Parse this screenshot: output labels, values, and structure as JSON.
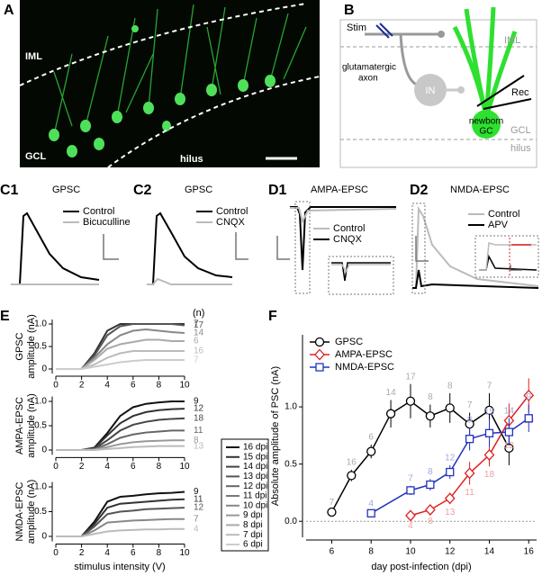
{
  "panel_labels": [
    "A",
    "B",
    "C1",
    "C2",
    "D1",
    "D2",
    "E",
    "F"
  ],
  "panel_a": {
    "labels": [
      "IML",
      "GCL",
      "hilus"
    ]
  },
  "panel_b": {
    "stim": "Stim",
    "iml": "IML",
    "axon": [
      "glutamatergic",
      "axon"
    ],
    "in": "IN",
    "rec": "Rec",
    "gc": [
      "newborn",
      "GC"
    ],
    "gcl": "GCL",
    "hilus": "hilus"
  },
  "traces": [
    {
      "title": "GPSC",
      "legend": [
        "Control",
        "Bicuculline"
      ]
    },
    {
      "title": "GPSC",
      "legend": [
        "Control",
        "CNQX"
      ]
    },
    {
      "title": "AMPA-EPSC",
      "legend": [
        "Control",
        "CNQX"
      ]
    },
    {
      "title": "NMDA-EPSC",
      "legend": [
        "Control",
        "APV"
      ]
    }
  ],
  "panel_e": {
    "n_header": "(n)",
    "legend": [
      "16 dpi",
      "15 dpi",
      "14 dpi",
      "13 dpi",
      "12 dpi",
      "11 dpi",
      "10 dpi",
      "9 dpi",
      "8 dpi",
      "7 dpi",
      "6 dpi"
    ],
    "legend_colors": [
      "#111111",
      "#333333",
      "#444444",
      "#555555",
      "#666666",
      "#777777",
      "#888888",
      "#999999",
      "#aaaaaa",
      "#bbbbbb",
      "#cccccc"
    ],
    "x_label": "stimulus intensity (V)"
  },
  "chart_data": [
    {
      "type": "line",
      "y_label": [
        "GPSC",
        "amplitude (nA)"
      ],
      "x": [
        0,
        2,
        3,
        4,
        5,
        6,
        7,
        8,
        9,
        10
      ],
      "xlim": [
        0,
        10
      ],
      "xticks": [
        0,
        2,
        4,
        6,
        8,
        10
      ],
      "ylim": [
        -0.1,
        1.1
      ],
      "yticks": [
        0,
        0.5,
        {
          "value": 1,
          "label": "1.0"
        }
      ],
      "series": [
        {
          "color": "#333333",
          "n": 7,
          "values": [
            0,
            0,
            0.35,
            0.85,
            1.0,
            1.0,
            1.0,
            1.0,
            1.0,
            1.0
          ]
        },
        {
          "color": "#555555",
          "n": 17,
          "values": [
            0,
            0,
            0.3,
            0.75,
            0.95,
            1.0,
            1.0,
            1.0,
            1.0,
            0.97
          ]
        },
        {
          "color": "#888888",
          "n": 14,
          "values": [
            0,
            0,
            0.25,
            0.55,
            0.75,
            0.85,
            0.88,
            0.85,
            0.82,
            0.8
          ]
        },
        {
          "color": "#aaaaaa",
          "n": 6,
          "values": [
            0,
            0,
            0.2,
            0.45,
            0.55,
            0.6,
            0.65,
            0.65,
            0.62,
            0.62
          ]
        },
        {
          "color": "#bbbbbb",
          "n": 16,
          "values": [
            0,
            0,
            0.1,
            0.25,
            0.35,
            0.4,
            0.4,
            0.4,
            0.4,
            0.4
          ]
        },
        {
          "color": "#cccccc",
          "n": 7,
          "values": [
            0,
            0,
            0.05,
            0.1,
            0.15,
            0.18,
            0.2,
            0.2,
            0.2,
            0.2
          ]
        }
      ]
    },
    {
      "type": "line",
      "y_label": [
        "AMPA-EPSC",
        "amplitude (nA)"
      ],
      "x": [
        0,
        2,
        3,
        4,
        5,
        6,
        7,
        8,
        9,
        10
      ],
      "xlim": [
        0,
        10
      ],
      "xticks": [
        0,
        2,
        4,
        6,
        8,
        10
      ],
      "ylim": [
        -0.1,
        1.1
      ],
      "yticks": [
        0,
        0.5,
        {
          "value": 1,
          "label": "1.0"
        }
      ],
      "series": [
        {
          "color": "#111111",
          "n": 9,
          "values": [
            0,
            0,
            0.05,
            0.35,
            0.7,
            0.88,
            0.95,
            0.98,
            1.0,
            1.0
          ]
        },
        {
          "color": "#333333",
          "n": 12,
          "values": [
            0,
            0,
            0.04,
            0.3,
            0.55,
            0.7,
            0.78,
            0.82,
            0.84,
            0.85
          ]
        },
        {
          "color": "#444444",
          "n": 18,
          "values": [
            0,
            0,
            0.03,
            0.2,
            0.4,
            0.52,
            0.58,
            0.62,
            0.64,
            0.65
          ]
        },
        {
          "color": "#666666",
          "n": 11,
          "values": [
            0,
            0,
            0.02,
            0.12,
            0.25,
            0.32,
            0.36,
            0.38,
            0.4,
            0.4
          ]
        },
        {
          "color": "#999999",
          "n": 8,
          "values": [
            0,
            0,
            0.01,
            0.06,
            0.12,
            0.16,
            0.18,
            0.19,
            0.2,
            0.2
          ]
        },
        {
          "color": "#bbbbbb",
          "n": 13,
          "values": [
            0,
            0,
            0,
            0.02,
            0.04,
            0.06,
            0.07,
            0.08,
            0.08,
            0.08
          ]
        }
      ]
    },
    {
      "type": "line",
      "y_label": [
        "NMDA-EPSC",
        "amplitude (nA)"
      ],
      "x": [
        0,
        2,
        3,
        4,
        5,
        6,
        7,
        8,
        9,
        10
      ],
      "xlim": [
        0,
        10
      ],
      "xticks": [
        0,
        2,
        4,
        6,
        8,
        10
      ],
      "ylim": [
        -0.1,
        1.1
      ],
      "yticks": [
        0,
        0.5,
        {
          "value": 1,
          "label": "1.0"
        }
      ],
      "series": [
        {
          "color": "#111111",
          "n": 9,
          "values": [
            0,
            0,
            0.3,
            0.7,
            0.8,
            0.82,
            0.85,
            0.87,
            0.88,
            0.9
          ]
        },
        {
          "color": "#333333",
          "n": 11,
          "values": [
            0,
            0,
            0.25,
            0.58,
            0.66,
            0.68,
            0.7,
            0.72,
            0.74,
            0.75
          ]
        },
        {
          "color": "#555555",
          "n": 12,
          "values": [
            0,
            0,
            0.2,
            0.45,
            0.5,
            0.52,
            0.55,
            0.56,
            0.57,
            0.58
          ]
        },
        {
          "color": "#888888",
          "n": 7,
          "values": [
            0,
            0,
            0.12,
            0.28,
            0.3,
            0.32,
            0.33,
            0.34,
            0.35,
            0.35
          ]
        },
        {
          "color": "#bbbbbb",
          "n": 4,
          "values": [
            0,
            0,
            0.05,
            0.1,
            0.12,
            0.13,
            0.14,
            0.14,
            0.15,
            0.15
          ]
        }
      ]
    },
    {
      "type": "line",
      "x_label": "day post-infection (dpi)",
      "y_label": "Absolute amplitude of PSC (nA)",
      "xlim": [
        4.7,
        16.4
      ],
      "xticks": [
        6,
        8,
        10,
        12,
        14,
        16
      ],
      "ylim": [
        -0.14,
        1.63
      ],
      "yticks": [
        {
          "value": 0,
          "label": "0.0"
        },
        0.5,
        {
          "value": 1,
          "label": "1.0"
        }
      ],
      "zero_line": true,
      "series": [
        {
          "name": "GPSC",
          "color": "#000000",
          "marker": "circle",
          "label_color": "#aaaaaa",
          "x": [
            6,
            7,
            8,
            9,
            10,
            11,
            12,
            13,
            14,
            15
          ],
          "values": [
            0.08,
            0.4,
            0.61,
            0.94,
            1.05,
            0.92,
            0.99,
            0.85,
            0.97,
            0.64
          ],
          "errors": [
            0.02,
            0.05,
            0.06,
            0.12,
            0.15,
            0.1,
            0.13,
            0.1,
            0.15,
            0.15
          ],
          "n": [
            7,
            16,
            6,
            14,
            17,
            8,
            8,
            7,
            7,
            2
          ]
        },
        {
          "name": "AMPA-EPSC",
          "color": "#dd2020",
          "marker": "diamond",
          "label_color": "#f0a0a0",
          "x": [
            10,
            11,
            12,
            13,
            14,
            15,
            16
          ],
          "values": [
            0.05,
            0.1,
            0.2,
            0.42,
            0.58,
            0.88,
            1.1
          ],
          "errors": [
            0.02,
            0.03,
            0.05,
            0.1,
            0.1,
            0.15,
            0.15
          ],
          "n": [
            4,
            8,
            13,
            11,
            18,
            12,
            19
          ]
        },
        {
          "name": "NMDA-EPSC",
          "color": "#2233bb",
          "marker": "square",
          "label_color": "#a0a8e0",
          "x": [
            8,
            10,
            11,
            12,
            13,
            14,
            15,
            16
          ],
          "values": [
            0.07,
            0.27,
            0.32,
            0.43,
            0.72,
            0.77,
            0.78,
            0.9
          ],
          "errors": [
            0.02,
            0.04,
            0.05,
            0.06,
            0.1,
            0.12,
            0.12,
            0.12
          ],
          "n": [
            4,
            7,
            8,
            12,
            8,
            15,
            14,
            9
          ]
        }
      ]
    }
  ]
}
